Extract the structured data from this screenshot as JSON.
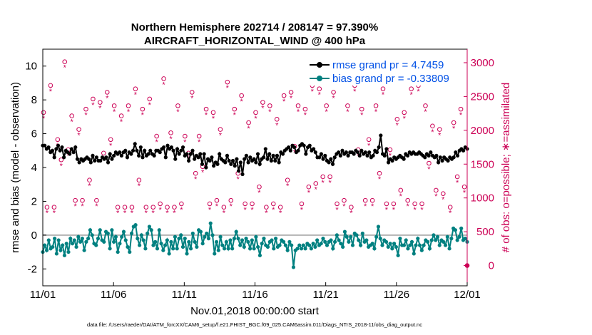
{
  "chart_data": {
    "type": "line",
    "title_line1": "Northern Hemisphere 202714 / 208147 = 97.390%",
    "title_line2": "AIRCRAFT_HORIZONTAL_WIND @ 400 hPa",
    "xlabel": "Nov.01,2018 00:00:00 start",
    "ylabel": "rmse and bias (model - observation)",
    "y2label": "# of obs: o=possible; ∗=assimilated",
    "x_ticks": [
      "11/01",
      "11/06",
      "11/11",
      "11/16",
      "11/21",
      "11/26",
      "12/01"
    ],
    "x_range": [
      0,
      30
    ],
    "ylim": [
      -3,
      11
    ],
    "y_ticks": [
      -2,
      0,
      2,
      4,
      6,
      8,
      10
    ],
    "y2lim": [
      -300,
      3200
    ],
    "y2_ticks": [
      0,
      500,
      1000,
      1500,
      2000,
      2500,
      3000
    ],
    "zero_line": 0,
    "footer": "data file: /Users/raeder/DAI/ATM_forcXX/CAM6_setup/f.e21.FHIST_BGC.f09_025.CAM6assim.011/Diags_NTrS_2018-11/obs_diag_output.nc",
    "colors": {
      "rmse": "#000000",
      "bias": "#008080",
      "obs": "#cc0055",
      "zero": "#b3b3b3"
    },
    "series": [
      {
        "name": "rmse grand pr = 4.7459",
        "values": [
          5.3,
          5.3,
          5.1,
          5.2,
          4.9,
          5.0,
          4.6,
          5.1,
          5.3,
          5.0,
          5.2,
          4.6,
          5.0,
          4.9,
          4.8,
          5.1,
          4.9,
          5.2,
          4.5,
          4.3,
          4.5,
          4.4,
          4.5,
          4.6,
          4.5,
          4.3,
          4.7,
          4.4,
          4.6,
          4.4,
          4.4,
          4.6,
          4.5,
          4.6,
          4.3,
          4.8,
          4.5,
          4.7,
          4.9,
          4.8,
          4.9,
          4.7,
          4.9,
          5.0,
          4.6,
          4.9,
          4.8,
          5.0,
          5.4,
          5.0,
          4.7,
          5.2,
          4.6,
          5.0,
          4.7,
          4.8,
          5.0,
          4.8,
          4.7,
          5.0,
          5.0,
          4.9,
          5.1,
          5.2,
          4.6,
          5.3,
          5.1,
          5.2,
          5.0,
          4.5,
          5.1,
          4.8,
          5.0,
          5.2,
          4.7,
          4.8,
          4.4,
          4.8,
          5.0,
          4.5,
          4.7,
          4.6,
          4.8,
          4.2,
          4.8,
          4.0,
          4.5,
          4.4,
          4.6,
          4.1,
          4.3,
          4.2,
          4.8,
          4.5,
          4.4,
          4.3,
          4.7,
          4.4,
          4.2,
          4.4,
          4.1,
          4.5,
          3.8,
          4.3,
          3.6,
          4.5,
          4.7,
          4.3,
          4.6,
          4.4,
          4.5,
          4.3,
          4.8,
          4.2,
          4.5,
          4.6,
          5.1,
          4.5,
          4.8,
          4.4,
          4.7,
          4.4,
          4.7,
          4.3,
          4.9,
          4.8,
          5.0,
          5.1,
          5.2,
          5.0,
          5.3,
          5.2,
          4.9,
          5.0,
          5.3,
          5.4,
          5.3,
          4.8,
          5.2,
          5.3,
          5.0,
          5.1,
          4.9,
          4.6,
          4.6,
          4.8,
          4.5,
          4.7,
          4.4,
          4.3,
          4.5,
          4.2,
          4.6,
          4.8,
          4.9,
          4.7,
          5.0,
          4.8,
          4.9,
          4.7,
          4.9,
          4.9,
          4.8,
          5.0,
          4.9,
          4.7,
          5.0,
          4.8,
          4.9,
          4.7,
          4.9,
          4.6,
          4.7,
          5.0,
          4.9,
          5.2,
          5.9,
          4.8,
          4.7,
          5.1,
          4.3,
          4.5,
          4.4,
          4.6,
          4.5,
          4.6,
          4.7,
          4.6,
          4.5,
          4.8,
          4.7,
          4.9,
          4.8,
          4.9,
          4.8,
          4.8,
          4.9,
          4.8,
          4.7,
          4.6,
          4.8,
          4.7,
          4.9,
          4.7,
          4.6,
          4.7,
          4.3,
          4.6,
          4.4,
          4.6,
          4.5,
          4.4,
          4.6,
          4.5,
          4.6,
          4.9,
          4.7,
          5.0,
          5.1,
          5.0,
          5.2,
          5.1
        ]
      },
      {
        "name": "bias grand pr = -0.33809",
        "values": [
          -1.0,
          -0.6,
          -0.9,
          -0.3,
          -0.8,
          -0.7,
          -0.2,
          -1.1,
          -0.3,
          -0.9,
          -0.6,
          -1.2,
          -0.5,
          -1.0,
          -0.2,
          -0.5,
          -0.3,
          -0.7,
          -0.1,
          -0.4,
          -0.2,
          -0.9,
          -0.4,
          -0.2,
          0.3,
          0.0,
          -0.5,
          -0.6,
          -0.2,
          0.3,
          -0.3,
          -0.4,
          0.2,
          0.1,
          -0.8,
          0.3,
          -0.4,
          -0.1,
          -1.0,
          -0.5,
          -0.1,
          0.2,
          -0.3,
          -0.7,
          -1.0,
          0.1,
          0.5,
          0.6,
          -0.2,
          -0.6,
          0.0,
          -0.3,
          -0.8,
          0.1,
          0.5,
          0.3,
          -0.6,
          -0.4,
          -0.8,
          0.3,
          -0.5,
          -0.9,
          -0.6,
          -0.3,
          -1.1,
          -0.4,
          -0.8,
          -0.1,
          -0.8,
          -0.2,
          0.0,
          -0.7,
          -0.2,
          -1.1,
          -0.4,
          -0.8,
          0.1,
          -0.4,
          -0.7,
          0.3,
          0.2,
          -0.5,
          -0.1,
          0.1,
          -0.2,
          0.7,
          0.0,
          -1.1,
          -0.4,
          -0.9,
          -0.1,
          -0.6,
          -0.8,
          -0.4,
          -0.8,
          -0.3,
          -0.8,
          -0.2,
          0.2,
          -0.2,
          -0.6,
          -0.3,
          -0.7,
          -0.2,
          -0.4,
          -0.8,
          -0.3,
          -0.8,
          -0.1,
          -0.7,
          -1.2,
          -0.5,
          -0.2,
          -0.6,
          -0.7,
          -0.4,
          -0.3,
          -0.8,
          -0.2,
          -0.7,
          -0.6,
          -0.3,
          -0.4,
          -0.6,
          -0.9,
          -0.4,
          -0.6,
          -1.9,
          -0.9,
          -0.8,
          -0.6,
          -0.8,
          -0.6,
          -0.8,
          -0.5,
          -0.6,
          -0.8,
          -0.5,
          -0.7,
          -0.3,
          -0.6,
          -0.5,
          -0.2,
          -0.4,
          -0.6,
          -0.4,
          -0.3,
          -0.8,
          -0.4,
          0.0,
          -0.3,
          -0.5,
          -0.7,
          0.2,
          -0.1,
          -0.4,
          -0.1,
          -0.6,
          0.1,
          0.0,
          -0.3,
          -0.6,
          0.1,
          -0.4,
          -0.3,
          -0.7,
          -0.6,
          -0.5,
          -0.8,
          -0.1,
          0.5,
          -0.2,
          -0.6,
          -0.3,
          -0.4,
          -0.7,
          -0.5,
          -0.8,
          -0.5,
          -0.7,
          -1.2,
          -0.2,
          -0.6,
          -0.6,
          -0.3,
          -0.8,
          -0.6,
          -0.4,
          -1.1,
          -0.6,
          -0.2,
          -0.6,
          -0.9,
          -0.6,
          -0.3,
          -0.4,
          -0.8,
          -0.3,
          0.0,
          -0.3,
          -0.1,
          -0.6,
          -0.3,
          -0.4,
          -0.6,
          -0.1,
          -0.8,
          -0.2,
          0.4,
          0.3,
          -0.3,
          -0.1,
          0.4,
          -0.3,
          -0.2,
          -0.4
        ]
      }
    ],
    "obs_counts": {
      "name": "# of obs (right axis)",
      "high_values": [
        2200,
        2600,
        1800,
        2950,
        2150,
        1950,
        2250,
        2400,
        2350,
        2500,
        2300,
        2150,
        2300,
        2550,
        2250,
        2400,
        1850,
        2700,
        1900,
        2300,
        1850,
        2500,
        1850,
        2250,
        2200,
        1950,
        2650,
        2250,
        2450,
        2050,
        2200,
        2350,
        2300,
        2100,
        2450,
        2500,
        2300,
        2250,
        2600,
        2550,
        2300,
        2500,
        2800,
        2300,
        2600,
        2250,
        1800,
        2300,
        2550,
        1650,
        2100,
        2200,
        2550,
        2600,
        2300,
        2000,
        1950,
        2850,
        2050,
        2250
      ],
      "low_values": [
        800,
        800,
        1500,
        1650,
        900,
        900,
        1200,
        900,
        1600,
        1800,
        800,
        800,
        800,
        1200,
        800,
        800,
        850,
        800,
        800,
        850,
        1600,
        1300,
        1400,
        850,
        900,
        800,
        900,
        1300,
        850,
        850,
        1100,
        800,
        850,
        800,
        1200,
        1700,
        850,
        1100,
        1150,
        1250,
        1250,
        850,
        900,
        800,
        1650,
        900,
        900,
        1300,
        850,
        850,
        1050,
        900,
        850,
        850,
        1450,
        1050,
        1000,
        800,
        1250,
        1100
      ]
    }
  }
}
